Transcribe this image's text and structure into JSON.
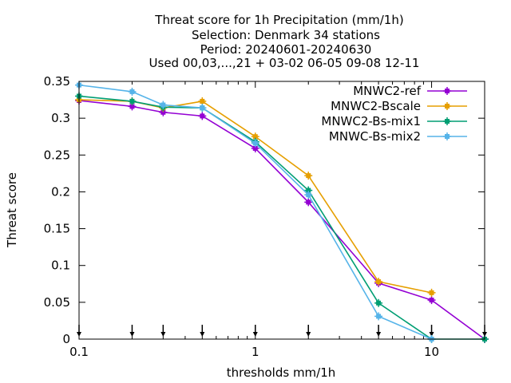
{
  "chart_data": {
    "type": "line",
    "title_lines": [
      "Threat score  for 1h Precipitation (mm/1h)",
      "Selection: Denmark      34 stations",
      "Period: 20240601-20240630",
      "Used 00,03,...,21 + 03-02 06-05 09-08 12-11"
    ],
    "xlabel": "thresholds mm/1h",
    "ylabel": "Threat score",
    "xscale": "log",
    "xlim": [
      0.1,
      20
    ],
    "ylim": [
      0,
      0.35
    ],
    "xticks": [
      0.1,
      1,
      10
    ],
    "xtick_labels": [
      "0.1",
      "1",
      "10"
    ],
    "yticks": [
      0,
      0.05,
      0.1,
      0.15,
      0.2,
      0.25,
      0.3,
      0.35
    ],
    "ytick_labels": [
      "0",
      "0.05",
      "0.1",
      "0.15",
      "0.2",
      "0.25",
      "0.3",
      "0.35"
    ],
    "threshold_markers": [
      0.1,
      0.2,
      0.3,
      0.5,
      1,
      2,
      5,
      10,
      20
    ],
    "legend_position": "top-right",
    "x": [
      0.1,
      0.2,
      0.3,
      0.5,
      1,
      2,
      5,
      10,
      20
    ],
    "series": [
      {
        "name": "MNWC2-ref",
        "color": "#9400d3",
        "values": [
          0.324,
          0.316,
          0.308,
          0.303,
          0.259,
          0.186,
          0.076,
          0.053,
          0.0
        ]
      },
      {
        "name": "MNWC2-Bscale",
        "color": "#e69f00",
        "values": [
          0.325,
          0.323,
          0.314,
          0.323,
          0.275,
          0.222,
          0.078,
          0.063,
          null
        ]
      },
      {
        "name": "MNWC2-Bs-mix1",
        "color": "#009e73",
        "values": [
          0.33,
          0.323,
          0.315,
          0.314,
          0.268,
          0.202,
          0.049,
          0.0,
          0.0
        ]
      },
      {
        "name": "MNWC-Bs-mix2",
        "color": "#56b4e9",
        "values": [
          0.345,
          0.336,
          0.318,
          0.314,
          0.266,
          0.196,
          0.031,
          0.0,
          null
        ]
      }
    ]
  }
}
